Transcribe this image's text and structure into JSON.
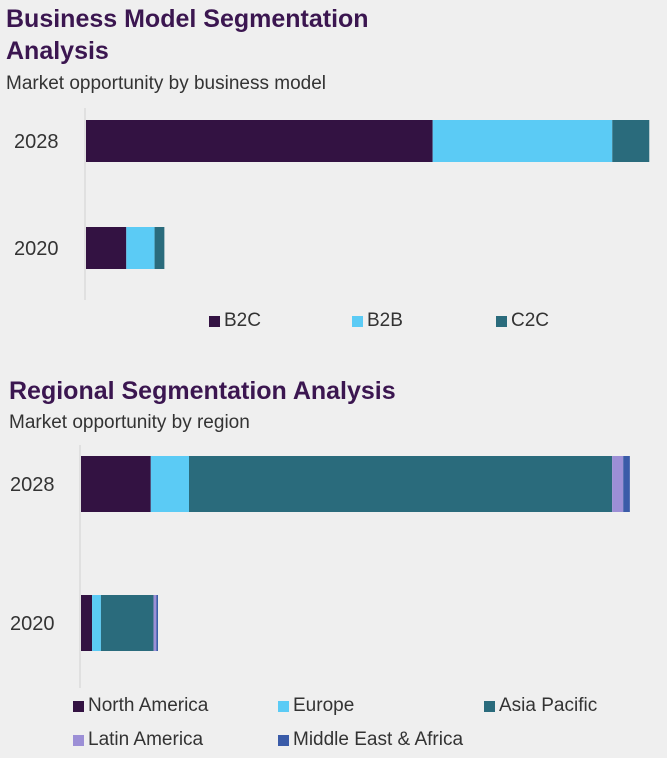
{
  "chart_data": [
    {
      "type": "bar",
      "orientation": "horizontal",
      "stacked": true,
      "title": "Business Model Segmentation Analysis",
      "subtitle": "Market opportunity by business model",
      "categories": [
        "2028",
        "2020"
      ],
      "series": [
        {
          "name": "B2C",
          "color": "#331242",
          "values": [
            63.7,
            7.4
          ]
        },
        {
          "name": "B2B",
          "color": "#5bcbf5",
          "values": [
            33.0,
            5.2
          ]
        },
        {
          "name": "C2C",
          "color": "#2a6b7c",
          "values": [
            6.8,
            1.8
          ]
        }
      ],
      "xlim": [
        0,
        104
      ],
      "legend_position": "bottom"
    },
    {
      "type": "bar",
      "orientation": "horizontal",
      "stacked": true,
      "title": "Regional Segmentation Analysis",
      "subtitle": "Market opportunity by region",
      "categories": [
        "2028",
        "2020"
      ],
      "series": [
        {
          "name": "North America",
          "color": "#331242",
          "values": [
            12.6,
            2.0
          ]
        },
        {
          "name": "Europe",
          "color": "#5bcbf5",
          "values": [
            6.9,
            1.6
          ]
        },
        {
          "name": "Asia Pacific",
          "color": "#2a6b7c",
          "values": [
            76.4,
            9.5
          ]
        },
        {
          "name": "Latin America",
          "color": "#9c8fd6",
          "values": [
            2.0,
            0.5
          ]
        },
        {
          "name": "Middle East & Africa",
          "color": "#3a5ba8",
          "values": [
            1.2,
            0.3
          ]
        }
      ],
      "xlim": [
        0,
        104
      ],
      "legend_position": "bottom"
    }
  ]
}
